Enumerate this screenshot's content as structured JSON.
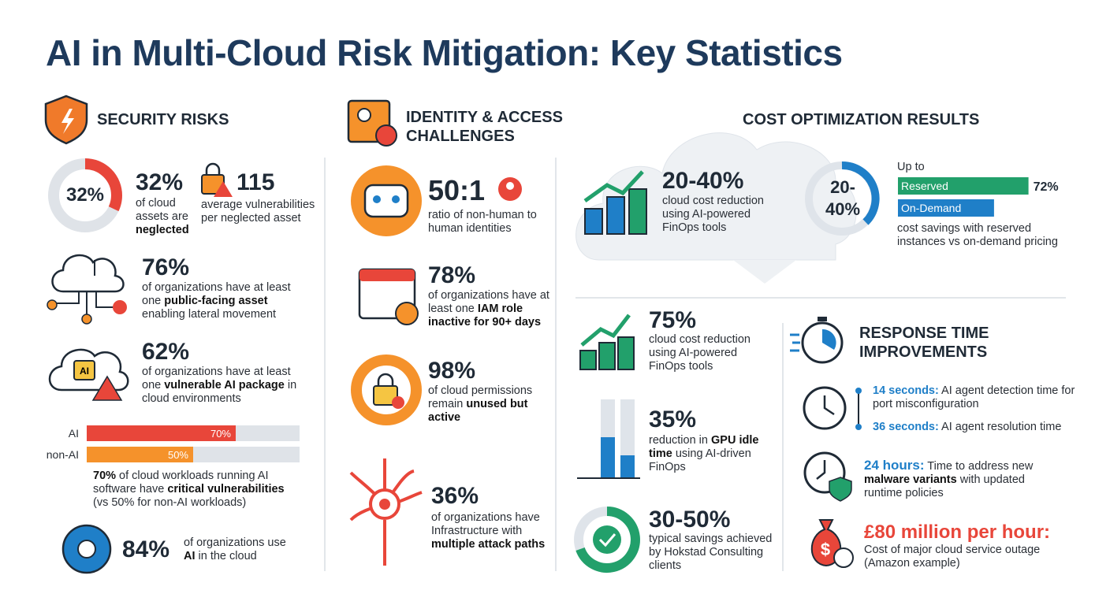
{
  "title": "AI in Multi-Cloud Risk Mitigation: Key Statistics",
  "security": {
    "heading": "SECURITY RISKS",
    "neglected": {
      "donut": {
        "value": 32,
        "label": "32%"
      },
      "desc": [
        "of cloud assets are ",
        {
          "b": "neglected"
        }
      ]
    },
    "vulnerabilities": {
      "stat": "115",
      "desc": [
        "average vulnerabilities per neglected asset"
      ]
    },
    "public_facing": {
      "stat": "76%",
      "desc": [
        "of organizations have at least one ",
        {
          "b": "public-facing asset"
        },
        " enabling lateral movement"
      ]
    },
    "ai_package": {
      "stat": "62%",
      "icon": "AI",
      "desc": [
        "of organizations have at least one ",
        {
          "b": "vulnerable AI package"
        },
        " in cloud environments"
      ]
    },
    "workloads": {
      "xlim": [
        0,
        100
      ],
      "bars": [
        {
          "name": "AI",
          "value": 70,
          "label": "70%",
          "color": "#e8463a"
        },
        {
          "name": "non-AI",
          "value": 50,
          "label": "50%",
          "color": "#f5922b"
        }
      ],
      "desc": [
        {
          "b": "70%"
        },
        " of cloud workloads running AI software have ",
        {
          "b": "critical vulnerabilities"
        },
        " (vs 50% for non-AI workloads)"
      ]
    },
    "ai_usage": {
      "stat": "84%",
      "desc": [
        "of organizations use ",
        {
          "b": "AI"
        },
        " in the cloud"
      ]
    }
  },
  "identity": {
    "heading": "IDENTITY & ACCESS CHALLENGES",
    "ratio": {
      "stat": "50:1",
      "desc": [
        "ratio of non-human to human identities"
      ]
    },
    "iam": {
      "stat": "78%",
      "desc": [
        "of organizations have at least one ",
        {
          "b": "IAM role inactive for 90+ days"
        }
      ]
    },
    "permissions": {
      "stat": "98%",
      "desc": [
        "of cloud permissions remain ",
        {
          "b": "unused but active"
        }
      ]
    },
    "attack_paths": {
      "stat": "36%",
      "desc": [
        "of organizations have Infrastructure with ",
        {
          "b": "multiple attack paths"
        }
      ]
    }
  },
  "cost": {
    "heading": "COST OPTIMIZATION RESULTS",
    "finops": {
      "stat": "20-40%",
      "desc": [
        "cloud cost reduction using AI-powered FinOps tools"
      ]
    },
    "savings": {
      "prefix": "Up to",
      "xlim": [
        0,
        100
      ],
      "bars": [
        {
          "name": "Reserved",
          "value": 72,
          "label": "72%",
          "color": "#22a06b"
        },
        {
          "name": "On-Demand",
          "value": 53,
          "color": "#1f7fc8"
        }
      ],
      "desc": [
        "cost savings with reserved instances vs on-demand pricing"
      ]
    },
    "finops_75": {
      "stat": "75%",
      "desc": [
        "cloud cost reduction using AI-powered FinOps tools"
      ]
    },
    "gpu": {
      "stat": "35%",
      "desc": [
        "reduction in ",
        {
          "b": "GPU idle time"
        },
        " using AI-driven FinOps"
      ]
    },
    "hokstad": {
      "stat": "30-50%",
      "desc": [
        "typical savings achieved by Hokstad Consulting clients"
      ]
    }
  },
  "response": {
    "heading": "RESPONSE TIME IMPROVEMENTS",
    "detection": [
      {
        "h": "14 seconds:"
      },
      " AI agent detection time for port misconfiguration"
    ],
    "resolution": [
      {
        "h": "36 seconds:"
      },
      " AI agent resolution time"
    ],
    "malware": [
      {
        "h": "24 hours:"
      },
      " Time to address new ",
      {
        "b": "malware variants"
      },
      " with updated runtime policies"
    ],
    "outage": {
      "stat": "£80 million per hour:",
      "desc": [
        "Cost of major cloud service outage (Amazon example)"
      ]
    }
  }
}
